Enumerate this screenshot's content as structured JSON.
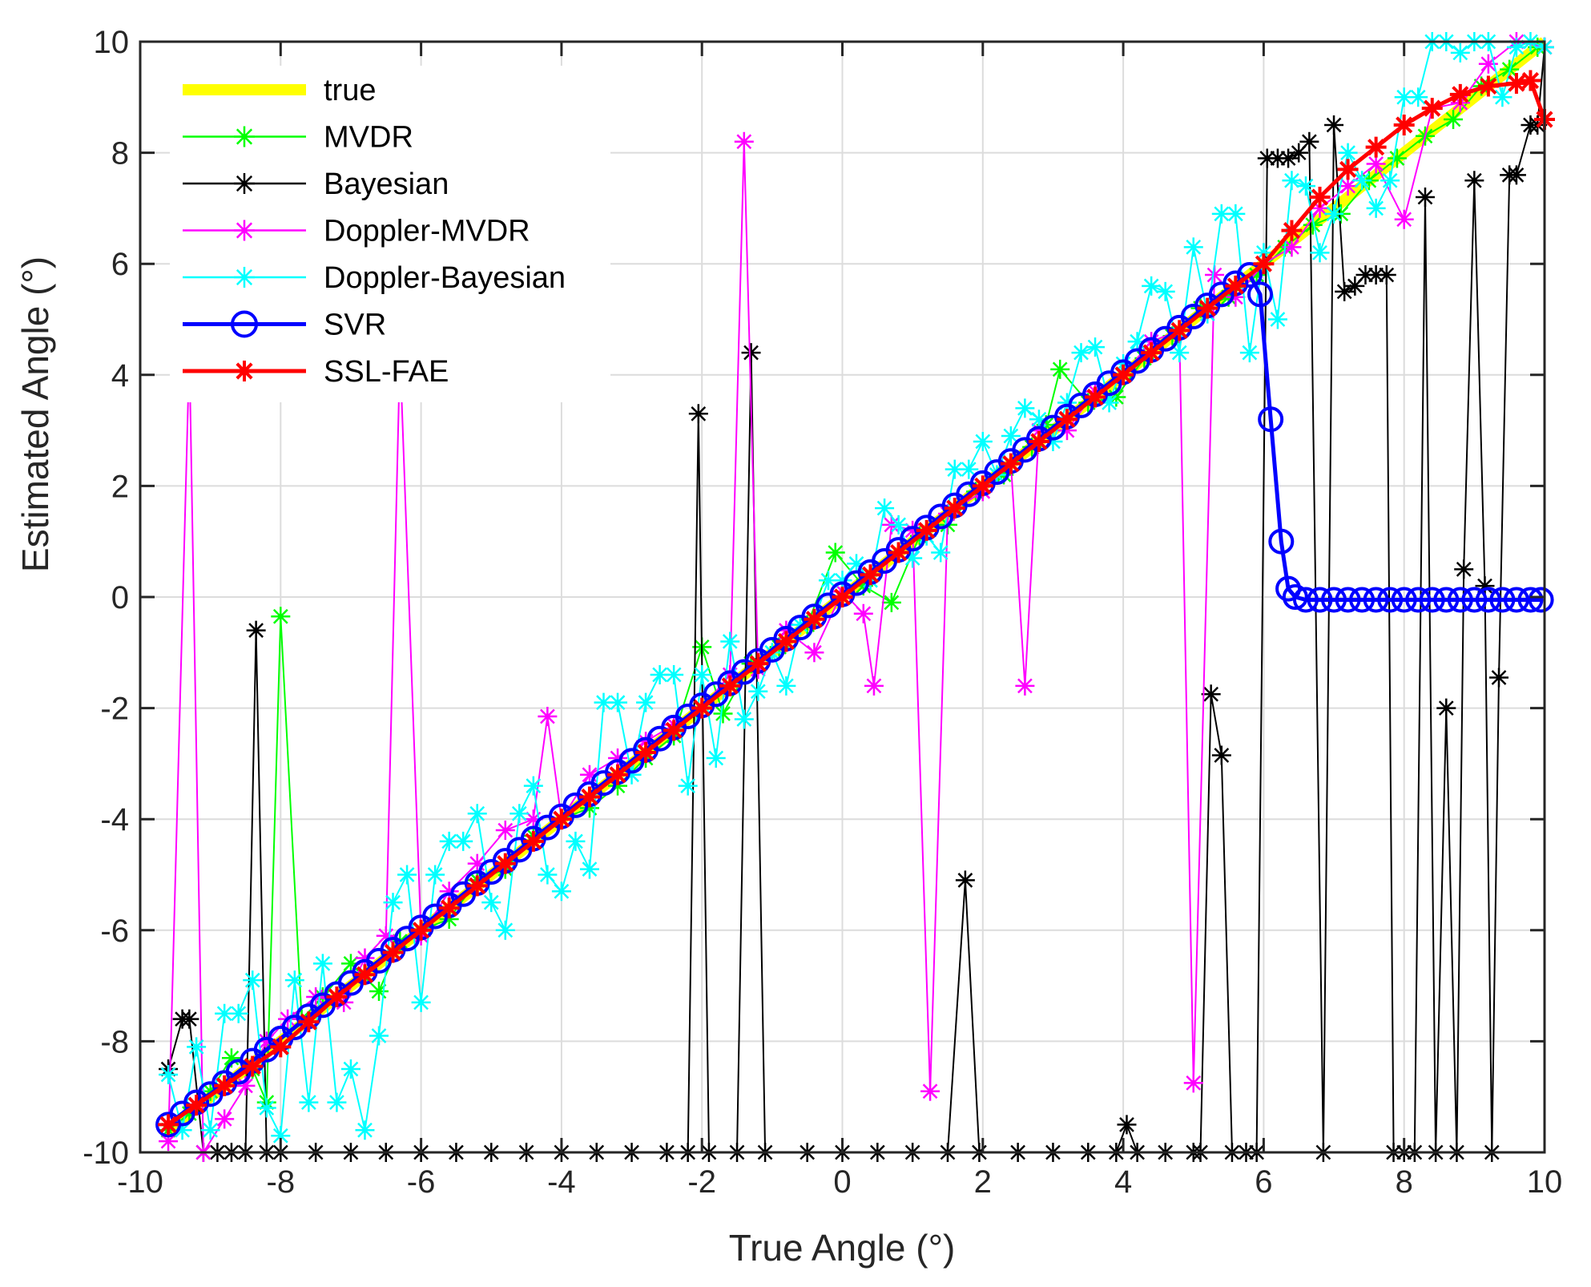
{
  "chart_data": {
    "type": "line",
    "xlabel": "True Angle (°)",
    "ylabel": "Estimated Angle (°)",
    "xlim": [
      -10,
      10
    ],
    "ylim": [
      -10,
      10
    ],
    "xticks": [
      -10,
      -8,
      -6,
      -4,
      -2,
      0,
      2,
      4,
      6,
      8,
      10
    ],
    "yticks": [
      -10,
      -8,
      -6,
      -4,
      -2,
      0,
      2,
      4,
      6,
      8,
      10
    ],
    "grid": true,
    "legend_position": "top-left",
    "series": [
      {
        "name": "true",
        "color": "#ffff00",
        "marker": "none",
        "x": [
          -9.6,
          10
        ],
        "y": [
          -9.6,
          10
        ]
      },
      {
        "name": "MVDR",
        "color": "#00ff00",
        "marker": "star",
        "x": [
          -9.6,
          -9.3,
          -9.0,
          -8.7,
          -8.4,
          -8.2,
          -8.0,
          -7.7,
          -7.4,
          -7.0,
          -6.6,
          -6.3,
          -6.0,
          -5.6,
          -5.2,
          -4.8,
          -4.4,
          -4.0,
          -3.6,
          -3.2,
          -2.8,
          -2.4,
          -2.0,
          -1.7,
          -1.3,
          -0.9,
          -0.5,
          -0.1,
          0.3,
          0.7,
          1.1,
          1.5,
          1.9,
          2.3,
          2.7,
          2.9,
          3.1,
          3.5,
          3.9,
          4.3,
          4.7,
          5.1,
          5.5,
          5.9,
          6.3,
          6.7,
          7.1,
          7.5,
          7.9,
          8.3,
          8.7,
          9.1,
          9.5,
          9.9
        ],
        "y": [
          -9.6,
          -9.3,
          -8.9,
          -8.3,
          -8.5,
          -9.1,
          -0.35,
          -7.6,
          -7.2,
          -6.6,
          -7.1,
          -6.2,
          -6.0,
          -5.8,
          -5.1,
          -4.9,
          -4.3,
          -4.0,
          -3.8,
          -3.4,
          -2.9,
          -2.5,
          -0.9,
          -2.1,
          -1.2,
          -0.9,
          -0.5,
          0.8,
          0.2,
          -0.1,
          1.1,
          1.3,
          1.9,
          2.2,
          2.7,
          3.1,
          4.1,
          3.5,
          3.6,
          4.3,
          4.7,
          5.2,
          5.4,
          5.8,
          6.3,
          6.7,
          6.9,
          7.5,
          7.9,
          8.3,
          8.6,
          9.2,
          9.5,
          9.9
        ]
      },
      {
        "name": "Bayesian",
        "color": "#000000",
        "marker": "star",
        "x": [
          -9.6,
          -9.4,
          -9.3,
          -9.1,
          -8.9,
          -8.7,
          -8.5,
          -8.35,
          -8.2,
          -8.0,
          -7.5,
          -7.0,
          -6.5,
          -6.0,
          -5.5,
          -5.0,
          -4.5,
          -4.0,
          -3.5,
          -3.0,
          -2.5,
          -2.2,
          -2.05,
          -1.9,
          -1.5,
          -1.3,
          -1.1,
          -0.5,
          0.0,
          0.5,
          1.0,
          1.5,
          1.75,
          1.95,
          2.5,
          3.0,
          3.5,
          3.9,
          4.05,
          4.2,
          4.6,
          5.0,
          5.1,
          5.25,
          5.4,
          5.55,
          5.75,
          5.9,
          6.05,
          6.2,
          6.35,
          6.5,
          6.65,
          6.85,
          7.0,
          7.15,
          7.3,
          7.45,
          7.6,
          7.75,
          7.85,
          8.0,
          8.15,
          8.3,
          8.45,
          8.6,
          8.75,
          8.85,
          9.0,
          9.15,
          9.25,
          9.35,
          9.5,
          9.6,
          9.8,
          9.9,
          10.0
        ],
        "y": [
          -8.5,
          -7.6,
          -7.6,
          -10,
          -10,
          -10,
          -10,
          -0.6,
          -10,
          -10,
          -10,
          -10,
          -10,
          -10,
          -10,
          -10,
          -10,
          -10,
          -10,
          -10,
          -10,
          -10,
          3.3,
          -10,
          -10,
          4.4,
          -10,
          -10,
          -10,
          -10,
          -10,
          -10,
          -5.1,
          -10,
          -10,
          -10,
          -10,
          -10,
          -9.5,
          -10,
          -10,
          -10,
          -10,
          -1.75,
          -2.85,
          -10,
          -10,
          -10,
          7.9,
          7.9,
          7.9,
          8.0,
          8.2,
          -10,
          8.5,
          5.5,
          5.6,
          5.8,
          5.8,
          5.8,
          -10,
          -10,
          -10,
          7.2,
          -10,
          -2.0,
          -10,
          0.5,
          7.5,
          0.2,
          -10,
          -1.45,
          7.6,
          7.6,
          8.5,
          8.5,
          9.9
        ]
      },
      {
        "name": "Doppler-MVDR",
        "color": "#ff00ff",
        "marker": "star",
        "x": [
          -9.6,
          -9.3,
          -9.1,
          -8.8,
          -8.5,
          -8.2,
          -7.9,
          -7.5,
          -7.1,
          -6.8,
          -6.5,
          -6.3,
          -6.0,
          -5.6,
          -5.2,
          -4.8,
          -4.4,
          -4.2,
          -4.0,
          -3.6,
          -3.2,
          -2.8,
          -2.4,
          -2.0,
          -1.6,
          -1.4,
          -1.2,
          -0.8,
          -0.4,
          0.0,
          0.3,
          0.45,
          0.7,
          1.0,
          1.25,
          1.5,
          2.0,
          2.4,
          2.6,
          2.8,
          3.2,
          3.6,
          4.0,
          4.4,
          4.8,
          5.0,
          5.3,
          5.6,
          6.0,
          6.4,
          6.8,
          7.2,
          7.6,
          8.0,
          8.4,
          8.8,
          9.2,
          9.6,
          10.0
        ],
        "y": [
          -9.8,
          4.4,
          -10,
          -9.4,
          -8.8,
          -8.0,
          -7.6,
          -7.2,
          -7.3,
          -6.5,
          -6.1,
          4.4,
          -6.1,
          -5.3,
          -4.8,
          -4.2,
          -4.0,
          -2.15,
          -4.0,
          -3.2,
          -2.9,
          -2.6,
          -2.3,
          -2.0,
          -1.4,
          8.2,
          -1.3,
          -0.6,
          -1.0,
          0.1,
          -0.3,
          -1.6,
          1.3,
          1.2,
          -8.9,
          1.5,
          1.9,
          2.4,
          -1.6,
          3.0,
          3.0,
          3.7,
          4.0,
          4.6,
          4.8,
          -8.75,
          5.8,
          5.4,
          6.0,
          6.3,
          7.0,
          7.4,
          7.8,
          6.8,
          8.8,
          8.9,
          9.6,
          10.0,
          9.9
        ]
      },
      {
        "name": "Doppler-Bayesian",
        "color": "#00ffff",
        "marker": "star",
        "x": [
          -9.6,
          -9.4,
          -9.2,
          -9.0,
          -8.8,
          -8.6,
          -8.4,
          -8.2,
          -8.0,
          -7.8,
          -7.6,
          -7.4,
          -7.2,
          -7.0,
          -6.8,
          -6.6,
          -6.4,
          -6.2,
          -6.0,
          -5.8,
          -5.6,
          -5.4,
          -5.2,
          -5.0,
          -4.8,
          -4.6,
          -4.4,
          -4.2,
          -4.0,
          -3.8,
          -3.6,
          -3.4,
          -3.2,
          -3.0,
          -2.8,
          -2.6,
          -2.4,
          -2.2,
          -2.0,
          -1.8,
          -1.6,
          -1.4,
          -1.2,
          -1.0,
          -0.8,
          -0.6,
          -0.4,
          -0.2,
          0.0,
          0.2,
          0.4,
          0.6,
          0.8,
          1.0,
          1.2,
          1.4,
          1.6,
          1.8,
          2.0,
          2.2,
          2.4,
          2.6,
          2.8,
          3.0,
          3.2,
          3.4,
          3.6,
          3.8,
          4.0,
          4.2,
          4.4,
          4.6,
          4.8,
          5.0,
          5.2,
          5.4,
          5.6,
          5.8,
          6.0,
          6.2,
          6.4,
          6.6,
          6.8,
          7.0,
          7.2,
          7.4,
          7.6,
          7.8,
          8.0,
          8.2,
          8.4,
          8.6,
          8.8,
          9.0,
          9.2,
          9.4,
          9.6,
          9.8,
          10.0
        ],
        "y": [
          -8.6,
          -9.6,
          -8.1,
          -9.6,
          -7.5,
          -7.5,
          -6.9,
          -9.2,
          -9.7,
          -6.9,
          -9.1,
          -6.6,
          -9.1,
          -8.5,
          -9.6,
          -7.9,
          -5.5,
          -5.0,
          -7.3,
          -5.0,
          -4.4,
          -4.4,
          -3.9,
          -5.5,
          -6.0,
          -3.9,
          -3.4,
          -5.0,
          -5.3,
          -4.4,
          -4.9,
          -1.9,
          -1.9,
          -3.2,
          -1.9,
          -1.4,
          -1.4,
          -3.4,
          -1.4,
          -2.9,
          -0.8,
          -2.2,
          -1.7,
          -1.0,
          -1.6,
          -0.5,
          -0.4,
          0.3,
          0.3,
          0.6,
          0.3,
          1.6,
          1.3,
          0.7,
          1.1,
          0.8,
          2.3,
          2.3,
          2.8,
          2.2,
          2.9,
          3.4,
          3.2,
          2.8,
          3.5,
          4.4,
          4.5,
          3.5,
          4.2,
          4.6,
          5.6,
          5.5,
          4.4,
          6.3,
          5.1,
          6.9,
          6.9,
          4.4,
          6.2,
          5.0,
          7.5,
          7.4,
          6.2,
          6.9,
          8.0,
          7.5,
          7.0,
          7.5,
          9.0,
          9.0,
          10.0,
          10.0,
          9.8,
          10.0,
          10.0,
          9.0,
          9.9,
          10.0,
          9.9
        ]
      },
      {
        "name": "SVR",
        "color": "#0000ff",
        "marker": "circle",
        "x": [
          -9.6,
          -9.4,
          -9.2,
          -9.0,
          -8.8,
          -8.6,
          -8.4,
          -8.2,
          -8.0,
          -7.8,
          -7.6,
          -7.4,
          -7.2,
          -7.0,
          -6.8,
          -6.6,
          -6.4,
          -6.2,
          -6.0,
          -5.8,
          -5.6,
          -5.4,
          -5.2,
          -5.0,
          -4.8,
          -4.6,
          -4.4,
          -4.2,
          -4.0,
          -3.8,
          -3.6,
          -3.4,
          -3.2,
          -3.0,
          -2.8,
          -2.6,
          -2.4,
          -2.2,
          -2.0,
          -1.8,
          -1.6,
          -1.4,
          -1.2,
          -1.0,
          -0.8,
          -0.6,
          -0.4,
          -0.2,
          0.0,
          0.2,
          0.4,
          0.6,
          0.8,
          1.0,
          1.2,
          1.4,
          1.6,
          1.8,
          2.0,
          2.2,
          2.4,
          2.6,
          2.8,
          3.0,
          3.2,
          3.4,
          3.6,
          3.8,
          4.0,
          4.2,
          4.4,
          4.6,
          4.8,
          5.0,
          5.2,
          5.4,
          5.6,
          5.8,
          5.95,
          6.1,
          6.25,
          6.35,
          6.45,
          6.6,
          6.8,
          7.0,
          7.2,
          7.4,
          7.6,
          7.8,
          8.0,
          8.2,
          8.4,
          8.6,
          8.8,
          9.0,
          9.2,
          9.4,
          9.6,
          9.8,
          9.95
        ],
        "y": [
          -9.5,
          -9.3,
          -9.1,
          -8.95,
          -8.75,
          -8.55,
          -8.35,
          -8.15,
          -7.95,
          -7.75,
          -7.55,
          -7.35,
          -7.15,
          -6.95,
          -6.75,
          -6.55,
          -6.35,
          -6.15,
          -5.95,
          -5.75,
          -5.55,
          -5.35,
          -5.15,
          -4.95,
          -4.75,
          -4.55,
          -4.35,
          -4.15,
          -3.95,
          -3.75,
          -3.55,
          -3.35,
          -3.15,
          -2.95,
          -2.75,
          -2.55,
          -2.35,
          -2.15,
          -1.95,
          -1.75,
          -1.55,
          -1.35,
          -1.15,
          -0.95,
          -0.75,
          -0.55,
          -0.35,
          -0.15,
          0.05,
          0.25,
          0.45,
          0.65,
          0.85,
          1.05,
          1.25,
          1.45,
          1.65,
          1.85,
          2.05,
          2.25,
          2.45,
          2.65,
          2.85,
          3.05,
          3.25,
          3.45,
          3.65,
          3.85,
          4.05,
          4.25,
          4.45,
          4.65,
          4.85,
          5.05,
          5.25,
          5.45,
          5.65,
          5.8,
          5.45,
          3.2,
          1.0,
          0.15,
          0.0,
          -0.05,
          -0.05,
          -0.05,
          -0.05,
          -0.05,
          -0.05,
          -0.05,
          -0.05,
          -0.05,
          -0.05,
          -0.05,
          -0.05,
          -0.05,
          -0.05,
          -0.05,
          -0.05,
          -0.05,
          -0.05
        ]
      },
      {
        "name": "SSL-FAE",
        "color": "#ff0000",
        "marker": "star",
        "x": [
          -9.6,
          -9.2,
          -8.8,
          -8.4,
          -8.0,
          -7.6,
          -7.2,
          -6.8,
          -6.4,
          -6.0,
          -5.6,
          -5.2,
          -4.8,
          -4.4,
          -4.0,
          -3.6,
          -3.2,
          -2.8,
          -2.4,
          -2.0,
          -1.6,
          -1.2,
          -0.8,
          -0.4,
          0.0,
          0.4,
          0.8,
          1.2,
          1.6,
          2.0,
          2.4,
          2.8,
          3.2,
          3.6,
          4.0,
          4.4,
          4.8,
          5.2,
          5.6,
          6.0,
          6.4,
          6.8,
          7.2,
          7.6,
          8.0,
          8.4,
          8.8,
          9.2,
          9.6,
          9.8,
          10.0
        ],
        "y": [
          -9.5,
          -9.15,
          -8.8,
          -8.45,
          -8.1,
          -7.65,
          -7.2,
          -6.8,
          -6.4,
          -6.0,
          -5.6,
          -5.2,
          -4.8,
          -4.4,
          -4.0,
          -3.6,
          -3.2,
          -2.8,
          -2.4,
          -2.0,
          -1.6,
          -1.2,
          -0.8,
          -0.4,
          0.0,
          0.4,
          0.8,
          1.2,
          1.6,
          2.0,
          2.4,
          2.8,
          3.2,
          3.6,
          4.0,
          4.4,
          4.8,
          5.2,
          5.6,
          6.0,
          6.6,
          7.2,
          7.7,
          8.1,
          8.5,
          8.8,
          9.05,
          9.2,
          9.25,
          9.3,
          8.6
        ]
      }
    ]
  }
}
